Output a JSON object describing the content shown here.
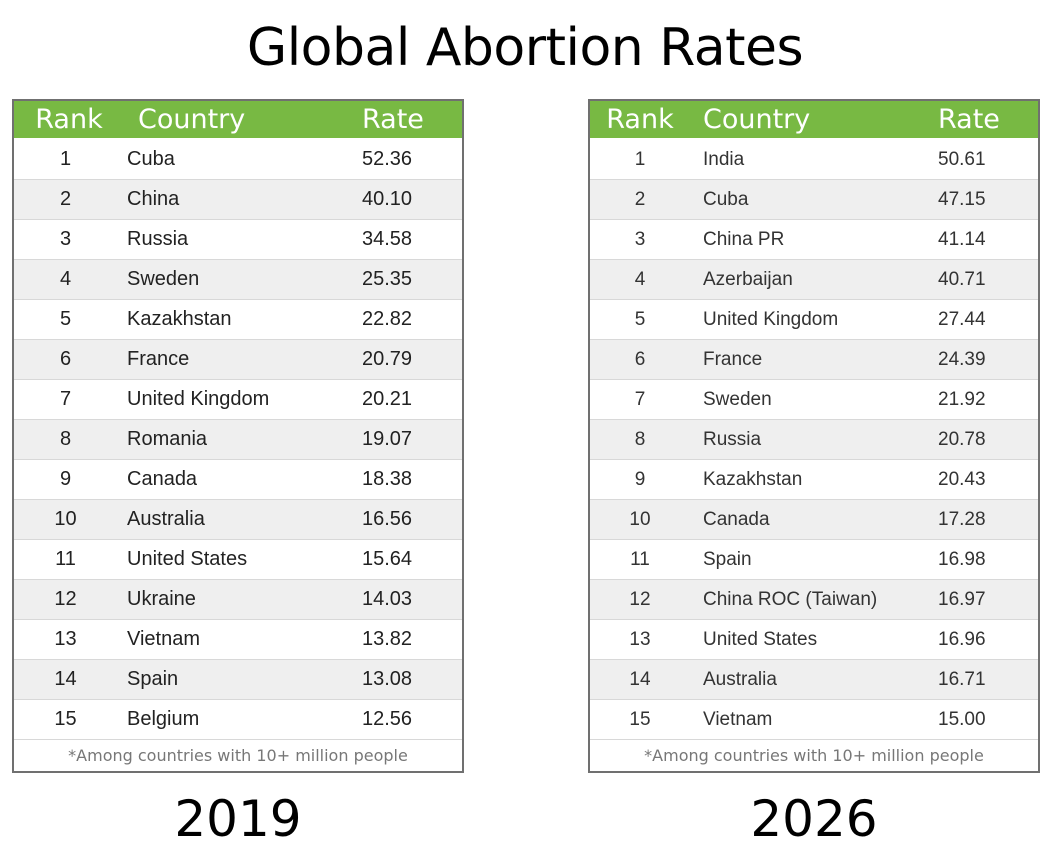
{
  "title": "Global Abortion Rates",
  "colors": {
    "header_bg": "#78b943",
    "alt_row": "#efefef",
    "border": "#707070"
  },
  "chart_data": [
    {
      "type": "table",
      "year": "2019",
      "columns": [
        "Rank",
        "Country",
        "Rate"
      ],
      "rows": [
        [
          "1",
          "Cuba",
          "52.36"
        ],
        [
          "2",
          "China",
          "40.10"
        ],
        [
          "3",
          "Russia",
          "34.58"
        ],
        [
          "4",
          "Sweden",
          "25.35"
        ],
        [
          "5",
          "Kazakhstan",
          "22.82"
        ],
        [
          "6",
          "France",
          "20.79"
        ],
        [
          "7",
          "United Kingdom",
          "20.21"
        ],
        [
          "8",
          "Romania",
          "19.07"
        ],
        [
          "9",
          "Canada",
          "18.38"
        ],
        [
          "10",
          "Australia",
          "16.56"
        ],
        [
          "11",
          "United States",
          "15.64"
        ],
        [
          "12",
          "Ukraine",
          "14.03"
        ],
        [
          "13",
          "Vietnam",
          "13.82"
        ],
        [
          "14",
          "Spain",
          "13.08"
        ],
        [
          "15",
          "Belgium",
          "12.56"
        ]
      ],
      "footnote": "*Among countries with 10+ million people"
    },
    {
      "type": "table",
      "year": "2026",
      "columns": [
        "Rank",
        "Country",
        "Rate"
      ],
      "rows": [
        [
          "1",
          "India",
          "50.61"
        ],
        [
          "2",
          "Cuba",
          "47.15"
        ],
        [
          "3",
          "China PR",
          "41.14"
        ],
        [
          "4",
          "Azerbaijan",
          "40.71"
        ],
        [
          "5",
          "United Kingdom",
          "27.44"
        ],
        [
          "6",
          "France",
          "24.39"
        ],
        [
          "7",
          "Sweden",
          "21.92"
        ],
        [
          "8",
          "Russia",
          "20.78"
        ],
        [
          "9",
          "Kazakhstan",
          "20.43"
        ],
        [
          "10",
          "Canada",
          "17.28"
        ],
        [
          "11",
          "Spain",
          "16.98"
        ],
        [
          "12",
          "China ROC (Taiwan)",
          "16.97"
        ],
        [
          "13",
          "United States",
          "16.96"
        ],
        [
          "14",
          "Australia",
          "16.71"
        ],
        [
          "15",
          "Vietnam",
          "15.00"
        ]
      ],
      "footnote": "*Among countries with 10+ million people"
    }
  ]
}
